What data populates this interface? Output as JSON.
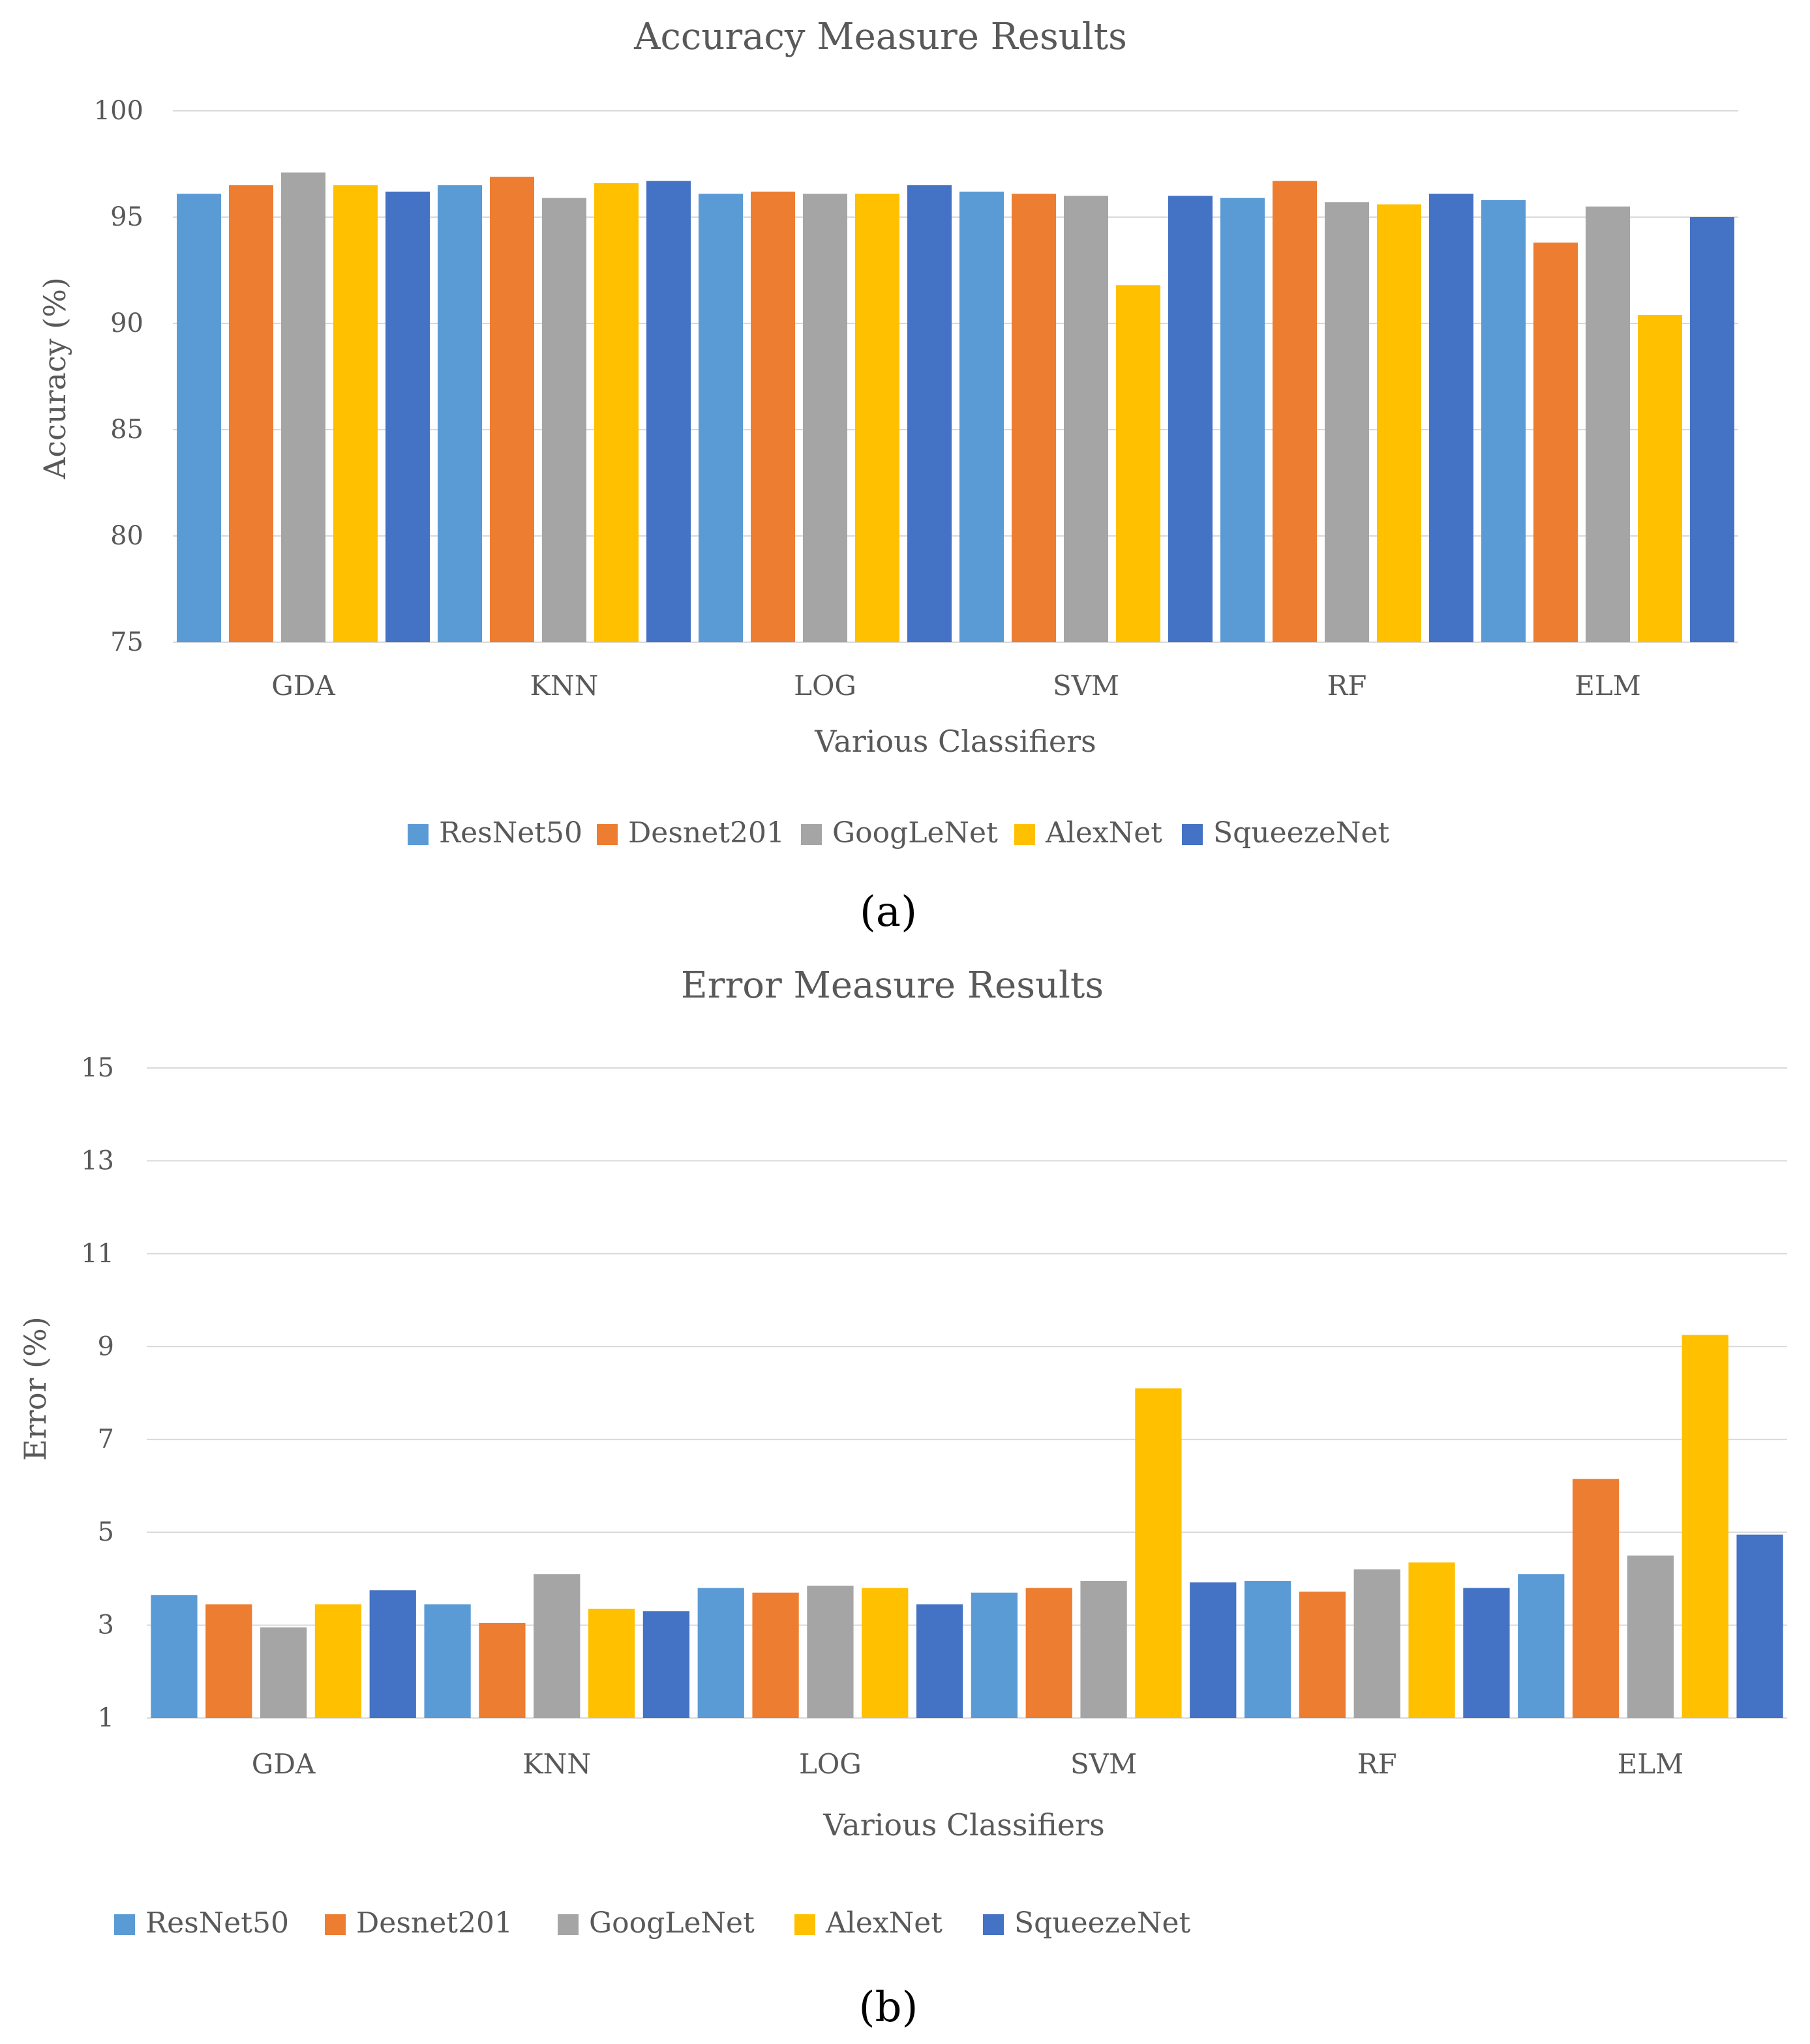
{
  "figure": {
    "panels": [
      "(a)",
      "(b)"
    ]
  },
  "colors": {
    "ResNet50": "#5B9BD5",
    "Desnet201": "#ED7D31",
    "GoogLeNet": "#A5A5A5",
    "AlexNet": "#FFC000",
    "SqueezeNet": "#4472C4",
    "grid": "#D9D9D9",
    "text": "#595959"
  },
  "chart_data": [
    {
      "type": "bar",
      "title": "Accuracy Measure Results",
      "xlabel": "Various Classifiers",
      "ylabel": "Accuracy (%)",
      "ylim": [
        75,
        100
      ],
      "yticks": [
        75,
        80,
        85,
        90,
        95,
        100
      ],
      "grid": true,
      "legend_position": "bottom",
      "categories": [
        "GDA",
        "KNN",
        "LOG",
        "SVM",
        "RF",
        "ELM"
      ],
      "series": [
        {
          "name": "ResNet50",
          "values": [
            96.1,
            96.5,
            96.1,
            96.2,
            95.9,
            95.8
          ]
        },
        {
          "name": "Desnet201",
          "values": [
            96.5,
            96.9,
            96.2,
            96.1,
            96.7,
            93.8
          ]
        },
        {
          "name": "GoogLeNet",
          "values": [
            97.1,
            95.9,
            96.1,
            96.0,
            95.7,
            95.5
          ]
        },
        {
          "name": "AlexNet",
          "values": [
            96.5,
            96.6,
            96.1,
            91.8,
            95.6,
            90.4
          ]
        },
        {
          "name": "SqueezeNet",
          "values": [
            96.2,
            96.7,
            96.5,
            96.0,
            96.1,
            95.0
          ]
        }
      ]
    },
    {
      "type": "bar",
      "title": "Error Measure Results",
      "xlabel": "Various Classifiers",
      "ylabel": "Error (%)",
      "ylim": [
        1,
        15
      ],
      "yticks": [
        1,
        3,
        5,
        7,
        9,
        11,
        13,
        15
      ],
      "grid": true,
      "legend_position": "bottom",
      "categories": [
        "GDA",
        "KNN",
        "LOG",
        "SVM",
        "RF",
        "ELM"
      ],
      "series": [
        {
          "name": "ResNet50",
          "values": [
            3.65,
            3.45,
            3.8,
            3.7,
            3.95,
            4.1
          ]
        },
        {
          "name": "Desnet201",
          "values": [
            3.45,
            3.05,
            3.7,
            3.8,
            3.72,
            6.15
          ]
        },
        {
          "name": "GoogLeNet",
          "values": [
            2.95,
            4.1,
            3.85,
            3.95,
            4.2,
            4.5
          ]
        },
        {
          "name": "AlexNet",
          "values": [
            3.45,
            3.35,
            3.8,
            8.1,
            4.35,
            9.25
          ]
        },
        {
          "name": "SqueezeNet",
          "values": [
            3.75,
            3.3,
            3.45,
            3.92,
            3.8,
            4.95
          ]
        }
      ]
    }
  ]
}
